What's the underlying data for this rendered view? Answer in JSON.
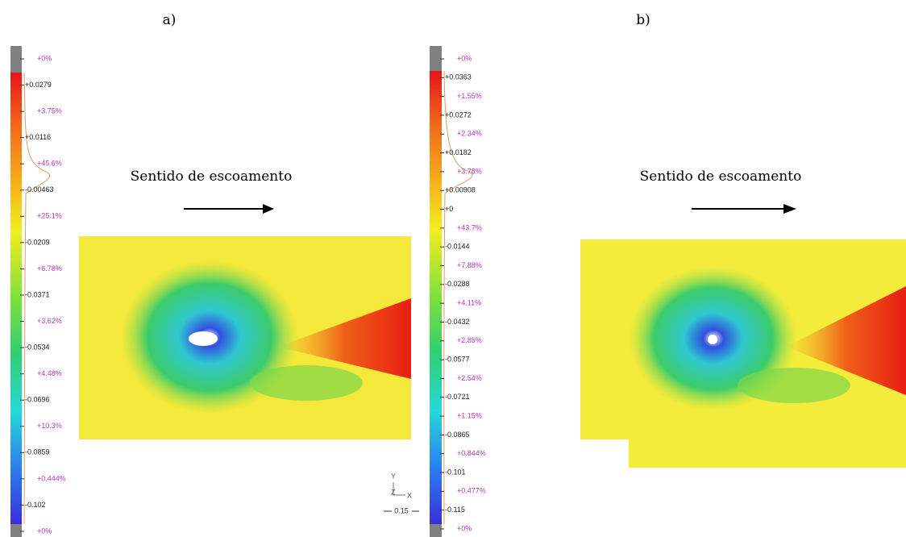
{
  "panels": [
    {
      "label": "a)",
      "annotation": "Sentido de escoamento",
      "scale_labels": [
        "+0%",
        "+0.0279",
        "+3.75%",
        "+0.0116",
        "+45.6%",
        "-0.00463",
        "+25.1%",
        "-0.0209",
        "+6.78%",
        "-0.0371",
        "+3.62%",
        "-0.0534",
        "+4.48%",
        "-0.0696",
        "+10.3%",
        "-0.0859",
        "+0.444%",
        "-0.102",
        "+0%"
      ],
      "axis_labels": [
        "Y",
        "Z",
        "X"
      ],
      "scale_bar": "0.15"
    },
    {
      "label": "b)",
      "annotation": "Sentido de escoamento",
      "scale_labels": [
        "+0%",
        "+0.0363",
        "+1.55%",
        "+0.0272",
        "+2.34%",
        "+0.0182",
        "+3.78%",
        "+0.00908",
        "+0",
        "+43.7%",
        "-0.0144",
        "+7.88%",
        "-0.0288",
        "+4.11%",
        "-0.0432",
        "+2.85%",
        "-0.0577",
        "+2.54%",
        "-0.0721",
        "+1.15%",
        "-0.0865",
        "+0.844%",
        "-0.101",
        "+0.477%",
        "-0.115",
        "+0%"
      ]
    }
  ]
}
